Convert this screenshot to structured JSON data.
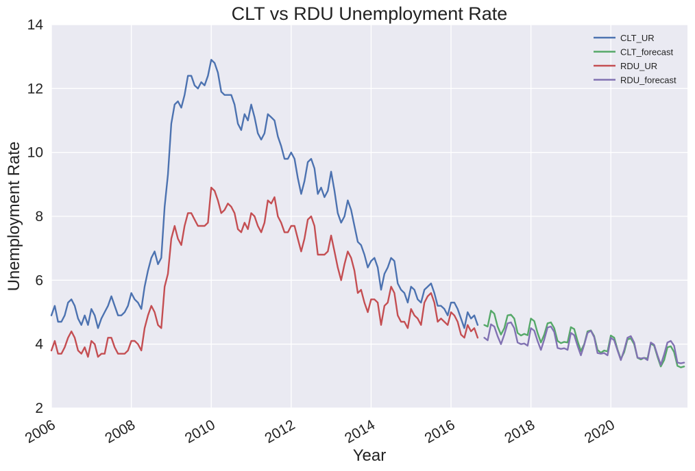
{
  "chart_data": {
    "type": "line",
    "title": "CLT vs RDU Unemployment Rate",
    "xlabel": "Year",
    "ylabel": "Unemployment Rate",
    "xlim": [
      2006.0,
      2021.917
    ],
    "ylim": [
      2,
      14
    ],
    "x_ticks": [
      2006,
      2008,
      2010,
      2012,
      2014,
      2016,
      2018,
      2020
    ],
    "x_tick_labels": [
      "2006",
      "2008",
      "2010",
      "2012",
      "2014",
      "2016",
      "2018",
      "2020"
    ],
    "y_ticks": [
      2,
      4,
      6,
      8,
      10,
      12,
      14
    ],
    "y_tick_labels": [
      "2",
      "4",
      "6",
      "8",
      "10",
      "12",
      "14"
    ],
    "grid": true,
    "background": "#eaeaf2",
    "legend": {
      "position": "top-right",
      "entries": [
        "CLT_UR",
        "CLT_forecast",
        "RDU_UR",
        "RDU_forecast"
      ]
    },
    "series": [
      {
        "name": "CLT_UR",
        "color": "#4c72b0",
        "start": "2006-01",
        "values": [
          4.9,
          5.2,
          4.7,
          4.7,
          4.9,
          5.3,
          5.4,
          5.2,
          4.8,
          4.6,
          4.9,
          4.6,
          5.1,
          4.9,
          4.5,
          4.8,
          5.0,
          5.2,
          5.5,
          5.2,
          4.9,
          4.9,
          5.0,
          5.2,
          5.6,
          5.4,
          5.3,
          5.1,
          5.8,
          6.3,
          6.7,
          6.9,
          6.5,
          6.7,
          8.3,
          9.3,
          10.9,
          11.5,
          11.6,
          11.4,
          11.8,
          12.4,
          12.4,
          12.1,
          12.0,
          12.2,
          12.1,
          12.4,
          12.9,
          12.8,
          12.5,
          11.9,
          11.8,
          11.8,
          11.8,
          11.5,
          10.9,
          10.7,
          11.2,
          11.0,
          11.5,
          11.1,
          10.6,
          10.4,
          10.6,
          11.2,
          11.1,
          11.0,
          10.5,
          10.2,
          9.8,
          9.8,
          10.0,
          9.8,
          9.2,
          8.7,
          9.1,
          9.7,
          9.8,
          9.5,
          8.7,
          8.9,
          8.6,
          8.8,
          9.4,
          8.8,
          8.1,
          7.8,
          8.0,
          8.5,
          8.2,
          7.7,
          7.2,
          7.1,
          6.8,
          6.4,
          6.6,
          6.7,
          6.4,
          5.7,
          6.2,
          6.4,
          6.7,
          6.6,
          5.9,
          5.7,
          5.6,
          5.3,
          5.8,
          5.7,
          5.4,
          5.3,
          5.7,
          5.8,
          5.9,
          5.6,
          5.2,
          5.2,
          5.1,
          4.9,
          5.3,
          5.3,
          5.1,
          4.8,
          4.5,
          5.0,
          4.8,
          4.9,
          4.6
        ]
      },
      {
        "name": "CLT_forecast",
        "color": "#55a868",
        "start": "2016-11",
        "values": [
          4.6,
          4.55,
          5.05,
          4.95,
          4.55,
          4.3,
          4.5,
          4.9,
          4.92,
          4.8,
          4.35,
          4.27,
          4.32,
          4.28,
          4.8,
          4.72,
          4.35,
          4.05,
          4.3,
          4.65,
          4.68,
          4.5,
          4.1,
          4.03,
          4.07,
          4.05,
          4.53,
          4.47,
          4.1,
          3.78,
          4.0,
          4.4,
          4.43,
          4.25,
          3.82,
          3.73,
          3.8,
          3.77,
          4.27,
          4.2,
          3.83,
          3.53,
          3.75,
          4.15,
          4.18,
          4.0,
          3.57,
          3.52,
          3.57,
          3.55,
          4.02,
          3.95,
          3.6,
          3.3,
          3.5,
          3.9,
          3.93,
          3.75,
          3.32,
          3.27,
          3.3
        ]
      },
      {
        "name": "RDU_UR",
        "color": "#c44e52",
        "start": "2006-01",
        "values": [
          3.8,
          4.1,
          3.7,
          3.7,
          3.9,
          4.2,
          4.4,
          4.2,
          3.8,
          3.7,
          3.9,
          3.6,
          4.1,
          4.0,
          3.6,
          3.7,
          3.7,
          4.2,
          4.2,
          3.9,
          3.7,
          3.7,
          3.7,
          3.8,
          4.1,
          4.1,
          4.0,
          3.8,
          4.5,
          4.9,
          5.2,
          5.0,
          4.6,
          4.5,
          5.8,
          6.2,
          7.3,
          7.7,
          7.3,
          7.1,
          7.7,
          8.1,
          8.1,
          7.9,
          7.7,
          7.7,
          7.7,
          7.8,
          8.9,
          8.8,
          8.5,
          8.1,
          8.2,
          8.4,
          8.3,
          8.1,
          7.6,
          7.5,
          7.8,
          7.6,
          8.1,
          8.0,
          7.7,
          7.5,
          7.8,
          8.5,
          8.4,
          8.6,
          8.0,
          7.8,
          7.5,
          7.5,
          7.7,
          7.7,
          7.3,
          6.9,
          7.3,
          7.9,
          8.0,
          7.7,
          6.8,
          6.8,
          6.8,
          6.9,
          7.4,
          6.9,
          6.4,
          6.0,
          6.5,
          6.9,
          6.7,
          6.3,
          5.6,
          5.7,
          5.3,
          5.0,
          5.4,
          5.4,
          5.3,
          4.6,
          5.2,
          5.3,
          5.8,
          5.6,
          4.9,
          4.7,
          4.7,
          4.5,
          5.1,
          4.9,
          4.8,
          4.6,
          5.3,
          5.5,
          5.6,
          5.3,
          4.7,
          4.8,
          4.7,
          4.6,
          5.0,
          4.9,
          4.7,
          4.3,
          4.2,
          4.6,
          4.4,
          4.5,
          4.2
        ]
      },
      {
        "name": "RDU_forecast",
        "color": "#8172b2",
        "start": "2016-11",
        "values": [
          4.2,
          4.12,
          4.62,
          4.55,
          4.25,
          4.0,
          4.3,
          4.65,
          4.68,
          4.5,
          4.05,
          4.0,
          4.02,
          3.95,
          4.5,
          4.42,
          4.1,
          3.82,
          4.15,
          4.52,
          4.55,
          4.38,
          3.88,
          3.85,
          3.87,
          3.82,
          4.35,
          4.28,
          3.95,
          3.65,
          3.98,
          4.35,
          4.42,
          4.22,
          3.72,
          3.7,
          3.72,
          3.65,
          4.2,
          4.12,
          3.8,
          3.5,
          3.82,
          4.2,
          4.25,
          4.05,
          3.58,
          3.55,
          3.57,
          3.5,
          4.05,
          3.98,
          3.65,
          3.35,
          3.68,
          4.05,
          4.1,
          3.95,
          3.42,
          3.4,
          3.42
        ]
      }
    ]
  }
}
